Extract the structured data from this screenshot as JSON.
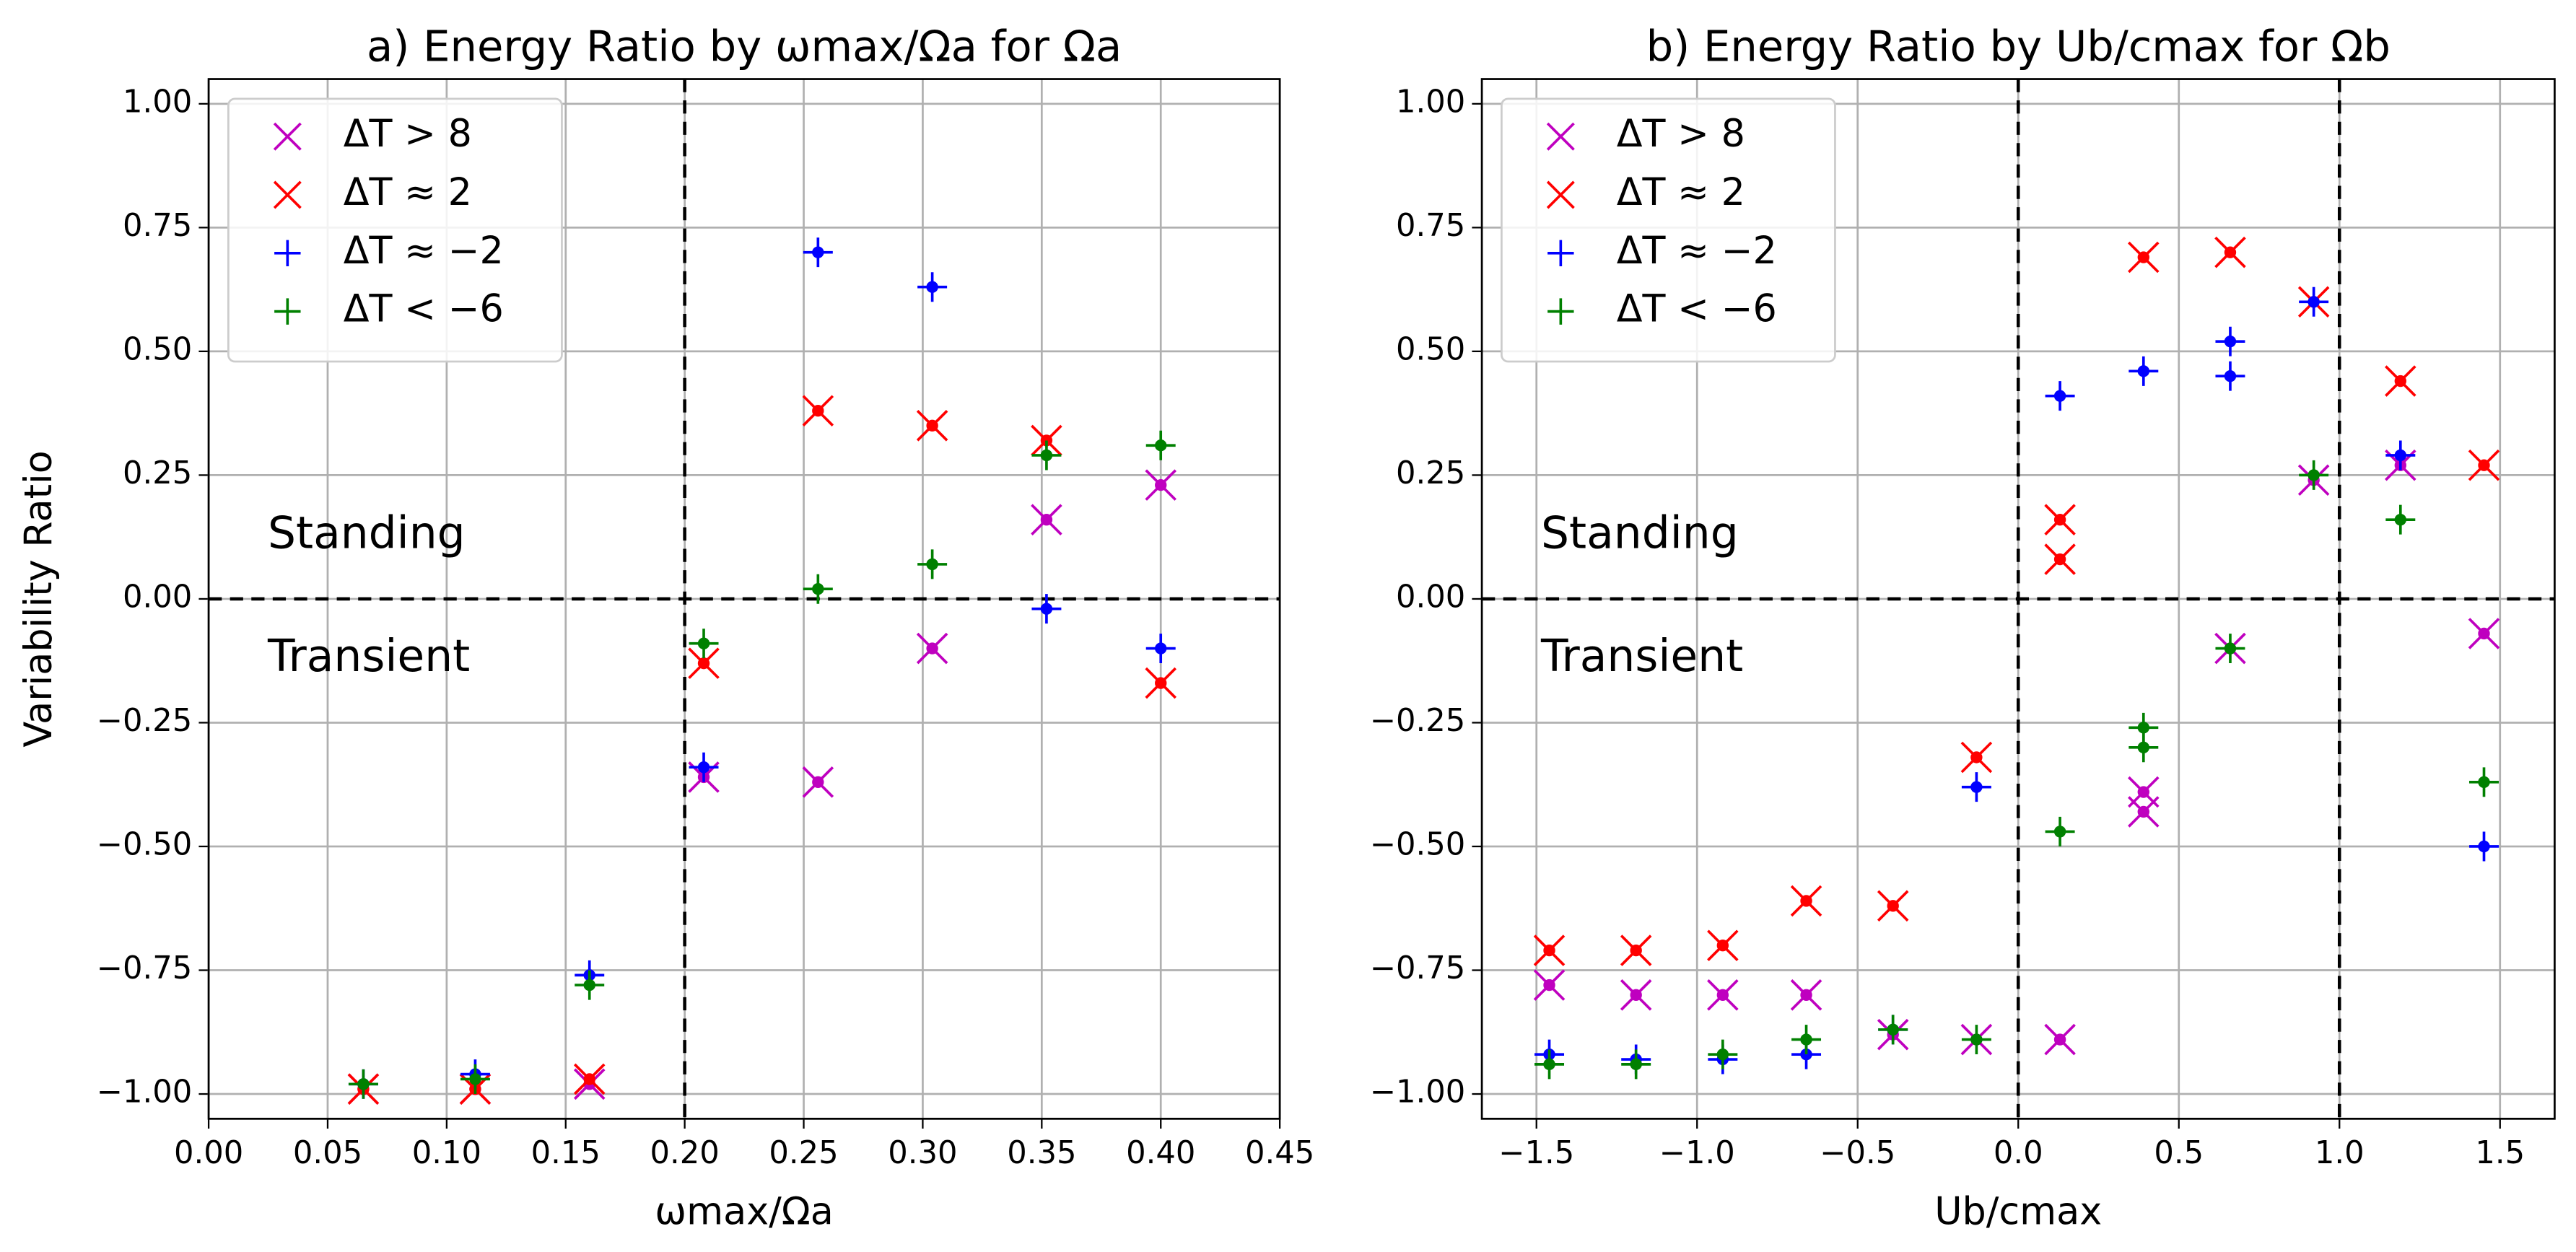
{
  "chart_data": [
    {
      "type": "scatter",
      "title": "a) Energy Ratio by ωmax/Ωa for Ωa",
      "x_label": "ωmax/Ωa",
      "y_label": "Variability Ratio",
      "xlim": [
        0,
        0.45
      ],
      "ylim": [
        -1.05,
        1.05
      ],
      "xticks": [
        {
          "value": 0,
          "label": "0.00"
        },
        {
          "value": 0.05,
          "label": "0.05"
        },
        {
          "value": 0.1,
          "label": "0.10"
        },
        {
          "value": 0.15,
          "label": "0.15"
        },
        {
          "value": 0.2,
          "label": "0.20"
        },
        {
          "value": 0.25,
          "label": "0.25"
        },
        {
          "value": 0.3,
          "label": "0.30"
        },
        {
          "value": 0.35,
          "label": "0.35"
        },
        {
          "value": 0.4,
          "label": "0.40"
        },
        {
          "value": 0.45,
          "label": "0.45"
        }
      ],
      "yticks": [
        {
          "value": -1,
          "label": "−1.00"
        },
        {
          "value": -0.75,
          "label": "−0.75"
        },
        {
          "value": -0.5,
          "label": "−0.50"
        },
        {
          "value": -0.25,
          "label": "−0.25"
        },
        {
          "value": 0,
          "label": "0.00"
        },
        {
          "value": 0.25,
          "label": "0.25"
        },
        {
          "value": 0.5,
          "label": "0.50"
        },
        {
          "value": 0.75,
          "label": "0.75"
        },
        {
          "value": 1,
          "label": "1.00"
        }
      ],
      "grid": true,
      "legend": "upper left",
      "vlines": [
        0.2
      ],
      "hlines": [
        0
      ],
      "annotations": [
        "Standing",
        "Transient"
      ],
      "series": [
        {
          "name": "ΔT > 8",
          "color": "#bf00bf",
          "marker": "x",
          "x": [
            0.065,
            0.112,
            0.16,
            0.208,
            0.256,
            0.304,
            0.352,
            0.4
          ],
          "values": [
            -0.99,
            -0.99,
            -0.98,
            -0.36,
            -0.37,
            -0.1,
            0.16,
            0.23
          ]
        },
        {
          "name": "ΔT ≈ 2",
          "color": "#ff0000",
          "marker": "x",
          "x": [
            0.065,
            0.112,
            0.16,
            0.208,
            0.256,
            0.304,
            0.352,
            0.4
          ],
          "values": [
            -0.99,
            -0.99,
            -0.97,
            -0.13,
            0.38,
            0.35,
            0.32,
            -0.17
          ]
        },
        {
          "name": "ΔT ≈ −2",
          "color": "#0000ff",
          "marker": "+",
          "x": [
            0.065,
            0.112,
            0.16,
            0.208,
            0.256,
            0.304,
            0.352,
            0.4
          ],
          "values": [
            -0.98,
            -0.96,
            -0.76,
            -0.34,
            0.7,
            0.63,
            -0.02,
            -0.1
          ]
        },
        {
          "name": "ΔT < −6",
          "color": "#008000",
          "marker": "+",
          "x": [
            0.065,
            0.112,
            0.16,
            0.208,
            0.256,
            0.304,
            0.352,
            0.4
          ],
          "values": [
            -0.98,
            -0.97,
            -0.78,
            -0.09,
            0.02,
            0.07,
            0.29,
            0.31
          ]
        }
      ]
    },
    {
      "type": "scatter",
      "title": "b) Energy Ratio by Ub/cmax for Ωb",
      "x_label": "Ub/cmax",
      "xlim": [
        -1.67,
        1.67
      ],
      "ylim": [
        -1.05,
        1.05
      ],
      "xticks": [
        {
          "value": -1.5,
          "label": "−1.5"
        },
        {
          "value": -1,
          "label": "−1.0"
        },
        {
          "value": -0.5,
          "label": "−0.5"
        },
        {
          "value": 0,
          "label": "0.0"
        },
        {
          "value": 0.5,
          "label": "0.5"
        },
        {
          "value": 1,
          "label": "1.0"
        },
        {
          "value": 1.5,
          "label": "1.5"
        }
      ],
      "yticks": [
        {
          "value": -1,
          "label": "−1.00"
        },
        {
          "value": -0.75,
          "label": "−0.75"
        },
        {
          "value": -0.5,
          "label": "−0.50"
        },
        {
          "value": -0.25,
          "label": "−0.25"
        },
        {
          "value": 0,
          "label": "0.00"
        },
        {
          "value": 0.25,
          "label": "0.25"
        },
        {
          "value": 0.5,
          "label": "0.50"
        },
        {
          "value": 0.75,
          "label": "0.75"
        },
        {
          "value": 1,
          "label": "1.00"
        }
      ],
      "grid": true,
      "legend": "upper left",
      "vlines": [
        0,
        1
      ],
      "hlines": [
        0
      ],
      "annotations": [
        "Standing",
        "Transient"
      ],
      "series": [
        {
          "name": "ΔT > 8",
          "color": "#bf00bf",
          "marker": "x",
          "x": [
            -1.46,
            -1.19,
            -0.92,
            -0.66,
            -0.39,
            -0.13,
            0.13,
            0.39,
            0.39,
            0.66,
            0.92,
            1.19,
            1.45
          ],
          "values": [
            -0.78,
            -0.8,
            -0.8,
            -0.8,
            -0.88,
            -0.89,
            -0.89,
            -0.39,
            -0.43,
            -0.1,
            0.24,
            0.27,
            -0.07
          ]
        },
        {
          "name": "ΔT ≈ 2",
          "color": "#ff0000",
          "marker": "x",
          "x": [
            -1.46,
            -1.19,
            -0.92,
            -0.66,
            -0.39,
            -0.13,
            0.13,
            0.13,
            0.39,
            0.66,
            0.92,
            1.19,
            1.45
          ],
          "values": [
            -0.71,
            -0.71,
            -0.7,
            -0.61,
            -0.62,
            -0.32,
            0.16,
            0.08,
            0.69,
            0.7,
            0.6,
            0.44,
            0.27
          ]
        },
        {
          "name": "ΔT ≈ −2",
          "color": "#0000ff",
          "marker": "+",
          "x": [
            -1.46,
            -1.19,
            -0.92,
            -0.66,
            -0.39,
            -0.13,
            0.13,
            0.39,
            0.66,
            0.66,
            0.92,
            1.19,
            1.45
          ],
          "values": [
            -0.92,
            -0.93,
            -0.93,
            -0.92,
            -0.87,
            -0.38,
            0.41,
            0.46,
            0.52,
            0.45,
            0.6,
            0.29,
            -0.5
          ]
        },
        {
          "name": "ΔT < −6",
          "color": "#008000",
          "marker": "+",
          "x": [
            -1.46,
            -1.19,
            -0.92,
            -0.66,
            -0.39,
            -0.13,
            0.13,
            0.39,
            0.39,
            0.66,
            0.92,
            1.19,
            1.45
          ],
          "values": [
            -0.94,
            -0.94,
            -0.92,
            -0.89,
            -0.87,
            -0.89,
            -0.47,
            -0.26,
            -0.3,
            -0.1,
            0.25,
            0.16,
            -0.37
          ]
        }
      ]
    }
  ]
}
